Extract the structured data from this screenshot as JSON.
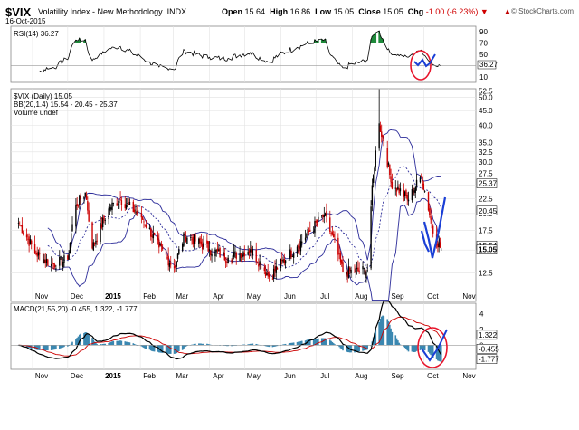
{
  "header": {
    "symbol": "$VIX",
    "name": "Volatility Index - New Methodology",
    "exchange": "INDX",
    "date": "16-Oct-2015",
    "open_label": "Open",
    "open": "15.64",
    "high_label": "High",
    "high": "16.86",
    "low_label": "Low",
    "low": "15.05",
    "close_label": "Close",
    "close": "15.05",
    "chg_label": "Chg",
    "chg": "-1.00 (-6.23%)",
    "copyright": "© StockCharts.com"
  },
  "colors": {
    "price_up": "#000000",
    "price_down": "#cc0000",
    "bollinger": "#2b2b99",
    "ma": "#2b2b99",
    "macd_line": "#000000",
    "signal_line": "#cc0000",
    "histogram": "#3a87b0",
    "annotation": "#1a3fd6",
    "circle": "#e8142b",
    "rsi_fill": "#1e8a3a"
  },
  "chart_data": [
    {
      "type": "line",
      "title": "RSI(14) 36.27",
      "ylim": [
        0,
        100
      ],
      "yticks": [
        10,
        30,
        50,
        70,
        90
      ],
      "right_tag": "36.27",
      "reference_lines": [
        30,
        70
      ]
    },
    {
      "type": "candlestick",
      "title": "$VIX (Daily) 15.05",
      "legend": [
        "BB(20,1.4) 15.54 - 20.45 - 25.37",
        "Volume undef"
      ],
      "yscale": "log",
      "ylim": [
        10,
        53.5
      ],
      "yticks": [
        12.5,
        15.0,
        17.5,
        20.0,
        22.5,
        25.0,
        27.5,
        30.0,
        32.5,
        35.0,
        40.0,
        45.0,
        50.0,
        52.5
      ],
      "right_tags": [
        "25.37",
        "20.45",
        "15.54",
        "15.05"
      ],
      "x_tick_labels": [
        "Nov",
        "Dec",
        "2015",
        "Feb",
        "Mar",
        "Apr",
        "May",
        "Jun",
        "Jul",
        "Aug",
        "Sep",
        "Oct",
        "Nov"
      ],
      "close_series": [
        {
          "date": "2014-10-20",
          "close": 18.6
        },
        {
          "date": "2014-11-03",
          "close": 14.7
        },
        {
          "date": "2014-11-17",
          "close": 13.4
        },
        {
          "date": "2014-12-01",
          "close": 13.9
        },
        {
          "date": "2014-12-08",
          "close": 21.3
        },
        {
          "date": "2014-12-16",
          "close": 23.6
        },
        {
          "date": "2014-12-22",
          "close": 15.2
        },
        {
          "date": "2015-01-06",
          "close": 21.0
        },
        {
          "date": "2015-01-15",
          "close": 22.4
        },
        {
          "date": "2015-02-02",
          "close": 19.4
        },
        {
          "date": "2015-02-17",
          "close": 15.3
        },
        {
          "date": "2015-03-02",
          "close": 13.0
        },
        {
          "date": "2015-03-11",
          "close": 16.9
        },
        {
          "date": "2015-04-01",
          "close": 15.1
        },
        {
          "date": "2015-04-17",
          "close": 14.1
        },
        {
          "date": "2015-05-06",
          "close": 15.1
        },
        {
          "date": "2015-05-22",
          "close": 12.1
        },
        {
          "date": "2015-06-15",
          "close": 15.4
        },
        {
          "date": "2015-07-08",
          "close": 19.7
        },
        {
          "date": "2015-07-24",
          "close": 12.6
        },
        {
          "date": "2015-08-14",
          "close": 12.8
        },
        {
          "date": "2015-08-24",
          "close": 40.7
        },
        {
          "date": "2015-09-03",
          "close": 25.6
        },
        {
          "date": "2015-09-18",
          "close": 22.3
        },
        {
          "date": "2015-09-29",
          "close": 26.8
        },
        {
          "date": "2015-10-09",
          "close": 17.1
        },
        {
          "date": "2015-10-16",
          "close": 15.05
        }
      ]
    },
    {
      "type": "line",
      "title": "MACD(21,55,20) -0.455, 1.322, -1.777",
      "series": [
        "MACD(21,55,20)"
      ],
      "yticks": [
        -2,
        0,
        2,
        4
      ],
      "right_tags": [
        "1.322",
        "-0.455",
        "-1.777"
      ],
      "x_tick_labels": [
        "Nov",
        "Dec",
        "2015",
        "Feb",
        "Mar",
        "Apr",
        "May",
        "Jun",
        "Jul",
        "Aug",
        "Sep",
        "Oct",
        "Nov"
      ]
    }
  ]
}
